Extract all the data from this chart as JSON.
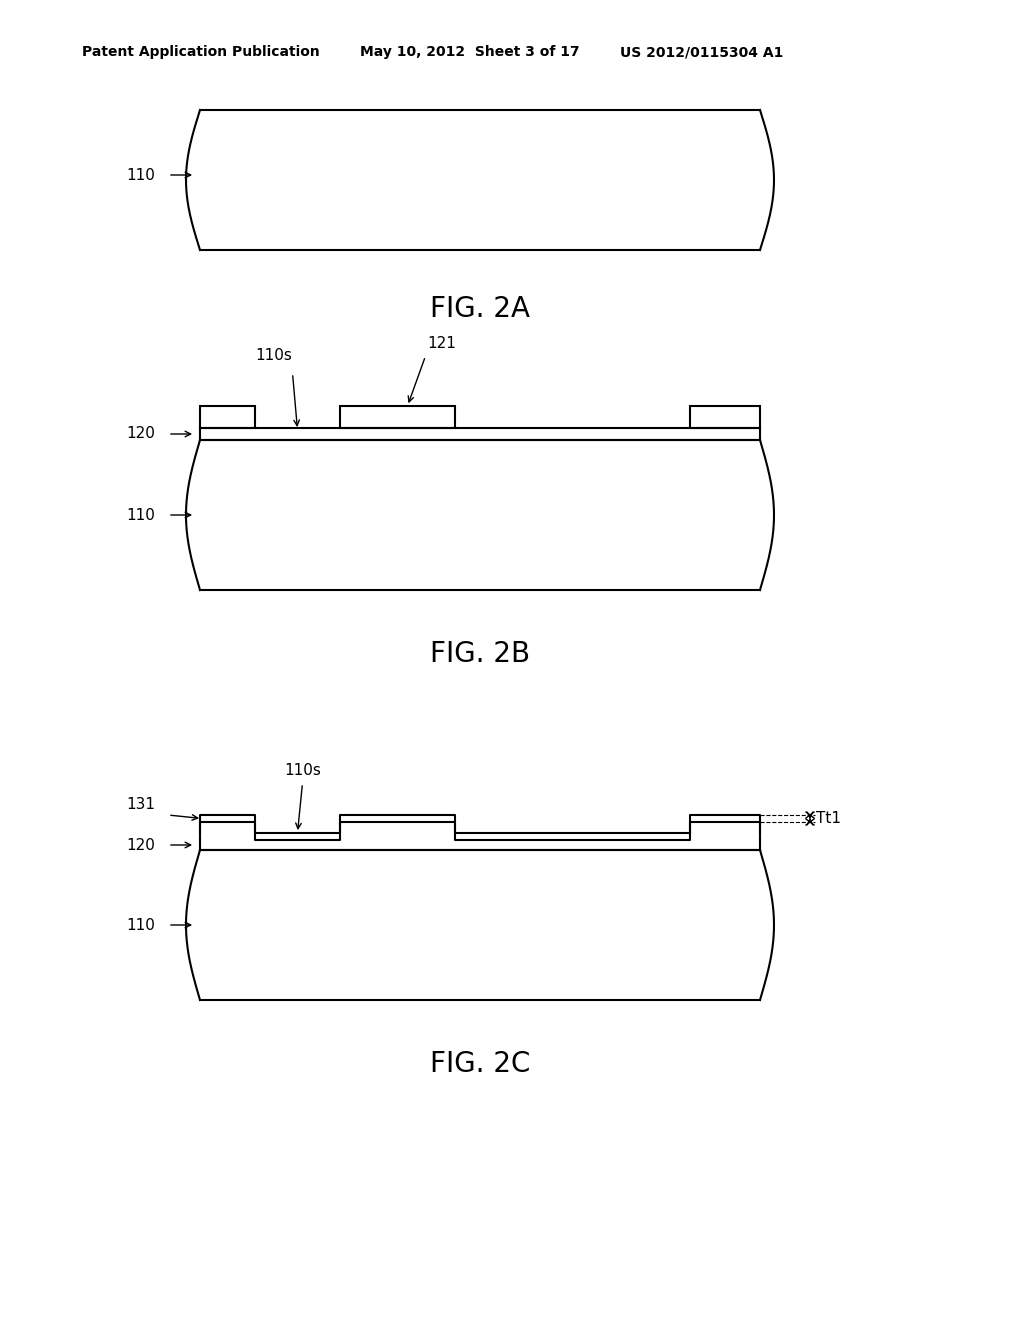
{
  "bg_color": "#ffffff",
  "header_left": "Patent Application Publication",
  "header_mid": "May 10, 2012  Sheet 3 of 17",
  "header_right": "US 2012/0115304 A1",
  "fig2a_label": "FIG. 2A",
  "fig2b_label": "FIG. 2B",
  "fig2c_label": "FIG. 2C",
  "line_color": "#000000",
  "line_width": 1.5
}
